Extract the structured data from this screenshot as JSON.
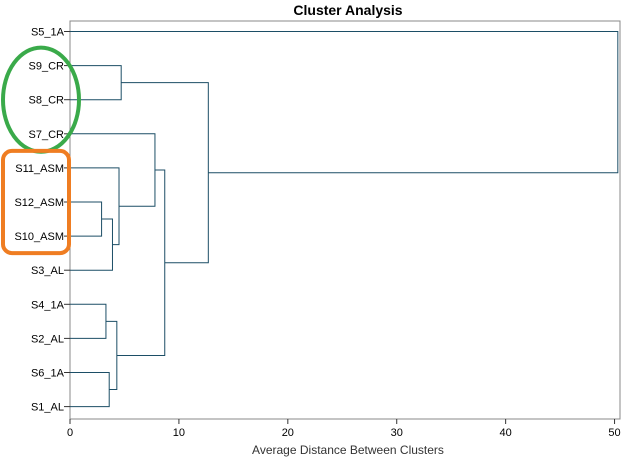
{
  "chart_data": {
    "type": "dendrogram",
    "title": "Cluster Analysis",
    "xlabel": "Average Distance Between Clusters",
    "xlim": [
      0,
      50.5
    ],
    "xticks": [
      "0",
      "10",
      "20",
      "30",
      "40",
      "50"
    ],
    "line_color": "#1c4e66",
    "leaves": [
      "S5_1A",
      "S9_CR",
      "S8_CR",
      "S7_CR",
      "S11_ASM",
      "S12_ASM",
      "S10_ASM",
      "S3_AL",
      "S4_1A",
      "S2_AL",
      "S6_1A",
      "S1_AL"
    ],
    "merges": [
      {
        "children": [
          "S12_ASM",
          "S10_ASM"
        ],
        "height": 2.9
      },
      {
        "children": [
          "S4_1A",
          "S2_AL"
        ],
        "height": 3.3
      },
      {
        "children": [
          "S6_1A",
          "S1_AL"
        ],
        "height": 3.6
      },
      {
        "children": [
          "c0",
          "S3_AL"
        ],
        "height": 3.9
      },
      {
        "children": [
          "c1",
          "c2"
        ],
        "height": 4.3
      },
      {
        "children": [
          "S11_ASM",
          "c3"
        ],
        "height": 4.5
      },
      {
        "children": [
          "S9_CR",
          "S8_CR"
        ],
        "height": 4.7
      },
      {
        "children": [
          "S7_CR",
          "c5"
        ],
        "height": 7.8
      },
      {
        "children": [
          "c7",
          "c4"
        ],
        "height": 8.7
      },
      {
        "children": [
          "c6",
          "c8"
        ],
        "height": 12.7
      },
      {
        "children": [
          "S5_1A",
          "c9"
        ],
        "height": 50.3
      }
    ],
    "annotations": [
      {
        "shape": "ellipse",
        "color": "#3aaa4a",
        "leaves": [
          "S9_CR",
          "S8_CR",
          "S7_CR"
        ]
      },
      {
        "shape": "rounded-rectangle",
        "color": "#ef7d22",
        "leaves": [
          "S11_ASM",
          "S12_ASM",
          "S10_ASM"
        ]
      }
    ]
  }
}
